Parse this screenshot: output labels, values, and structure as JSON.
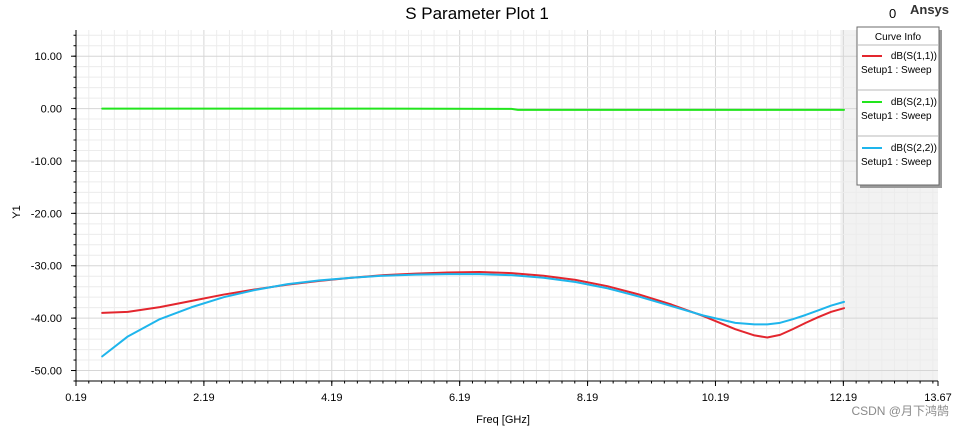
{
  "brand": "Ansys",
  "corner_value": "0",
  "watermark": "CSDN @月下鸿鹄",
  "chart_data": {
    "type": "line",
    "title": "S Parameter Plot 1",
    "xlabel": "Freq [GHz]",
    "ylabel": "Y1",
    "xlim": [
      0.19,
      13.67
    ],
    "ylim": [
      -52,
      15
    ],
    "x_ticks": [
      "0.19",
      "2.19",
      "4.19",
      "6.19",
      "8.19",
      "10.19",
      "12.19",
      "13.67"
    ],
    "x_tick_values": [
      0.19,
      2.19,
      4.19,
      6.19,
      8.19,
      10.19,
      12.19,
      13.67
    ],
    "y_ticks": [
      "10.00",
      "0.00",
      "-10.00",
      "-20.00",
      "-30.00",
      "-40.00",
      "-50.00"
    ],
    "y_tick_values": [
      10,
      0,
      -10,
      -20,
      -30,
      -40,
      -50
    ],
    "grid": true,
    "legend_title": "Curve Info",
    "legend_position": "top-right",
    "series": [
      {
        "name": "dB(S(1,1))",
        "sub": "Setup1 : Sweep",
        "color": "#e3262e",
        "x": [
          0.6,
          1.0,
          1.5,
          2.0,
          2.5,
          3.0,
          3.5,
          4.0,
          4.5,
          5.0,
          5.5,
          6.0,
          6.5,
          7.0,
          7.5,
          8.0,
          8.5,
          9.0,
          9.5,
          10.0,
          10.5,
          10.8,
          11.0,
          11.2,
          11.4,
          11.6,
          11.8,
          12.0,
          12.2
        ],
        "y": [
          -39.0,
          -38.8,
          -37.9,
          -36.7,
          -35.5,
          -34.5,
          -33.6,
          -32.9,
          -32.3,
          -31.8,
          -31.5,
          -31.3,
          -31.2,
          -31.4,
          -31.9,
          -32.7,
          -33.9,
          -35.5,
          -37.4,
          -39.6,
          -42.1,
          -43.3,
          -43.7,
          -43.2,
          -42.1,
          -40.9,
          -39.8,
          -38.8,
          -38.1
        ]
      },
      {
        "name": "dB(S(2,1))",
        "sub": "Setup1 : Sweep",
        "color": "#22e51d",
        "x": [
          0.6,
          2.0,
          4.0,
          6.0,
          7.0,
          7.1,
          8.0,
          10.0,
          12.2
        ],
        "y": [
          0.0,
          0.0,
          0.0,
          -0.02,
          -0.05,
          -0.25,
          -0.25,
          -0.25,
          -0.25
        ]
      },
      {
        "name": "dB(S(2,2))",
        "sub": "Setup1 : Sweep",
        "color": "#1eb5ec",
        "x": [
          0.6,
          1.0,
          1.5,
          2.0,
          2.5,
          3.0,
          3.5,
          4.0,
          4.5,
          5.0,
          5.5,
          6.0,
          6.5,
          7.0,
          7.5,
          8.0,
          8.5,
          9.0,
          9.5,
          10.0,
          10.5,
          10.8,
          11.0,
          11.2,
          11.4,
          11.6,
          11.8,
          12.0,
          12.2
        ],
        "y": [
          -47.3,
          -43.5,
          -40.2,
          -37.9,
          -36.0,
          -34.6,
          -33.5,
          -32.8,
          -32.3,
          -31.9,
          -31.7,
          -31.6,
          -31.6,
          -31.8,
          -32.3,
          -33.1,
          -34.3,
          -35.9,
          -37.7,
          -39.5,
          -40.9,
          -41.2,
          -41.2,
          -40.9,
          -40.2,
          -39.4,
          -38.5,
          -37.6,
          -36.9
        ]
      }
    ]
  }
}
